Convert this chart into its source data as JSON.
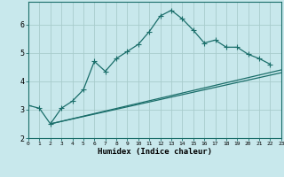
{
  "xlabel": "Humidex (Indice chaleur)",
  "background_color": "#c8e8ec",
  "grid_color": "#a8cccc",
  "line_color": "#1a6e6a",
  "xlim": [
    0,
    23
  ],
  "ylim": [
    2.0,
    6.8
  ],
  "yticks": [
    2,
    3,
    4,
    5,
    6
  ],
  "xticks": [
    0,
    1,
    2,
    3,
    4,
    5,
    6,
    7,
    8,
    9,
    10,
    11,
    12,
    13,
    14,
    15,
    16,
    17,
    18,
    19,
    20,
    21,
    22,
    23
  ],
  "curve_x": [
    0,
    1,
    2,
    3,
    4,
    5,
    6,
    7,
    8,
    9,
    10,
    11,
    12,
    13,
    14,
    15,
    16,
    17,
    18,
    19,
    20,
    21,
    22
  ],
  "curve_y": [
    3.15,
    3.05,
    2.5,
    3.05,
    3.3,
    3.7,
    4.7,
    4.35,
    4.8,
    5.05,
    5.3,
    5.75,
    6.3,
    6.5,
    6.2,
    5.8,
    5.35,
    5.45,
    5.2,
    5.2,
    4.95,
    4.8,
    4.6
  ],
  "line2_x": [
    2,
    23
  ],
  "line2_y": [
    2.5,
    4.4
  ],
  "line3_x": [
    2,
    23
  ],
  "line3_y": [
    2.5,
    4.3
  ],
  "markersize": 2.8
}
